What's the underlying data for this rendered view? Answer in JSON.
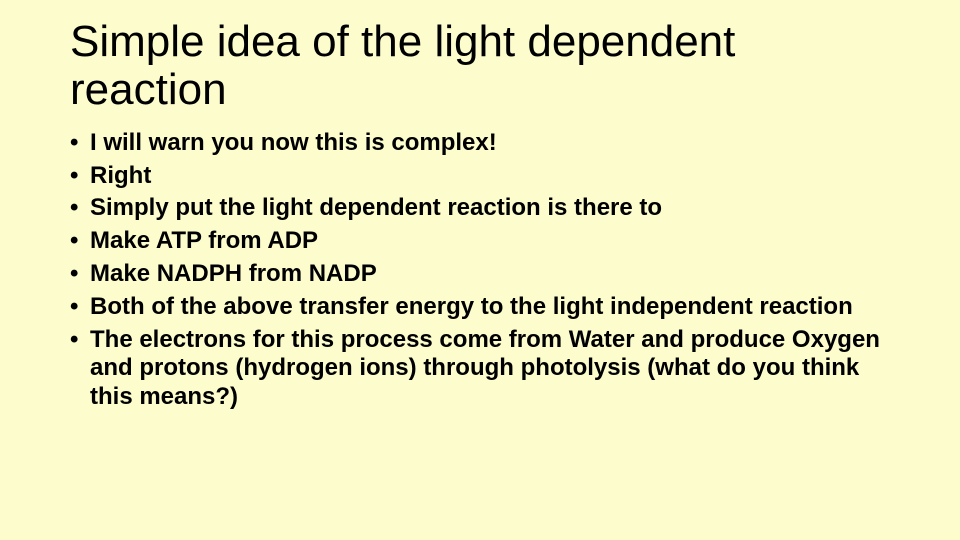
{
  "background_color": "#fcfccd",
  "text_color": "#000000",
  "font_family": "Comic Sans MS",
  "title": "Simple idea of the light dependent reaction",
  "title_fontsize": 44,
  "bullet_fontsize": 24,
  "bullet_fontweight": "bold",
  "bullets": [
    "I will warn you now this is complex!",
    "Right",
    "Simply put the light dependent reaction is there to",
    "Make ATP from ADP",
    "Make NADPH from NADP",
    "Both of the above transfer energy to the light independent reaction",
    "The electrons for this process come from Water and produce Oxygen and protons (hydrogen ions) through photolysis (what do you think this means?)"
  ]
}
